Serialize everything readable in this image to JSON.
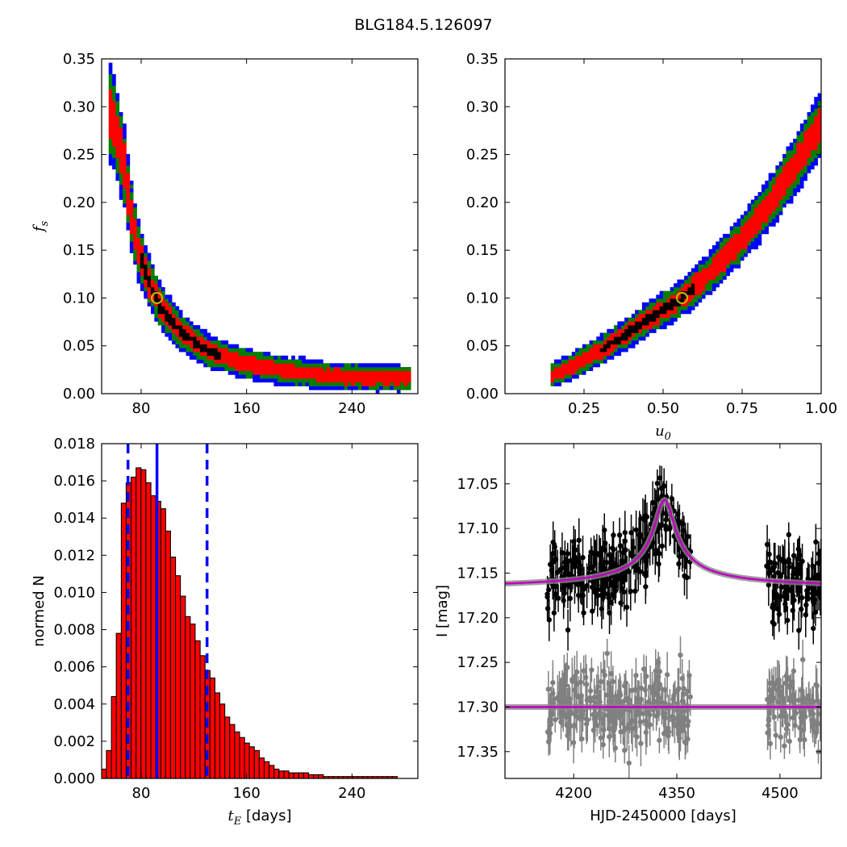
{
  "title": "BLG184.5.126097",
  "chart_data": [
    {
      "id": "fs_vs_tE",
      "type": "heatmap",
      "xlabel": "",
      "ylabel": "f_s",
      "xlim": [
        50,
        290
      ],
      "ylim": [
        0.0,
        0.35
      ],
      "xticks": [
        "80",
        "160",
        "240"
      ],
      "yticks": [
        "0.00",
        "0.05",
        "0.10",
        "0.15",
        "0.20",
        "0.25",
        "0.30",
        "0.35"
      ],
      "levels": [
        {
          "name": "3sigma",
          "color": "#0000ff"
        },
        {
          "name": "2sigma",
          "color": "#007f00"
        },
        {
          "name": "1sigma",
          "color": "#ff0000"
        },
        {
          "name": "best",
          "color": "#000000"
        }
      ],
      "ridge_points": [
        [
          55,
          0.3
        ],
        [
          60,
          0.28
        ],
        [
          67,
          0.24
        ],
        [
          72,
          0.19
        ],
        [
          78,
          0.15
        ],
        [
          85,
          0.12
        ],
        [
          95,
          0.09
        ],
        [
          110,
          0.065
        ],
        [
          130,
          0.045
        ],
        [
          155,
          0.033
        ],
        [
          185,
          0.025
        ],
        [
          220,
          0.019
        ],
        [
          260,
          0.017
        ],
        [
          285,
          0.016
        ]
      ],
      "best_fit": [
        92,
        0.1
      ],
      "grid": false
    },
    {
      "id": "fs_vs_u0",
      "type": "heatmap",
      "xlabel": "u_0",
      "ylabel": "",
      "xlim": [
        0.0,
        1.0
      ],
      "ylim": [
        0.0,
        0.35
      ],
      "xticks": [
        "0.25",
        "0.50",
        "0.75",
        "1.00"
      ],
      "yticks": [
        "0.00",
        "0.05",
        "0.10",
        "0.15",
        "0.20",
        "0.25",
        "0.30",
        "0.35"
      ],
      "ridge_points": [
        [
          0.14,
          0.018
        ],
        [
          0.2,
          0.027
        ],
        [
          0.3,
          0.045
        ],
        [
          0.4,
          0.066
        ],
        [
          0.5,
          0.088
        ],
        [
          0.56,
          0.1
        ],
        [
          0.65,
          0.127
        ],
        [
          0.75,
          0.162
        ],
        [
          0.85,
          0.205
        ],
        [
          0.93,
          0.245
        ],
        [
          1.0,
          0.285
        ]
      ],
      "best_fit": [
        0.56,
        0.1
      ],
      "grid": false
    },
    {
      "id": "tE_histogram",
      "type": "bar",
      "xlabel": "t_E [days]",
      "ylabel": "normed N",
      "xlim": [
        50,
        290
      ],
      "ylim": [
        0.0,
        0.018
      ],
      "xticks": [
        "80",
        "160",
        "240"
      ],
      "yticks": [
        "0.000",
        "0.002",
        "0.004",
        "0.006",
        "0.008",
        "0.010",
        "0.012",
        "0.014",
        "0.016",
        "0.018"
      ],
      "bin_width": 3.74,
      "x": [
        51.8,
        55.5,
        59.3,
        63.0,
        66.8,
        70.5,
        74.2,
        78.0,
        81.7,
        85.5,
        89.2,
        93.0,
        96.7,
        100.4,
        104.2,
        107.9,
        111.7,
        115.4,
        119.1,
        122.9,
        126.6,
        130.4,
        134.1,
        137.8,
        141.6,
        145.3,
        149.1,
        152.8,
        156.6,
        160.3,
        164.0,
        167.8,
        171.5,
        175.3,
        179.0,
        182.7,
        186.5,
        190.2,
        194.0,
        197.7,
        201.4,
        205.2,
        208.9,
        212.7,
        216.4,
        220.2,
        223.9,
        227.6,
        231.4,
        235.1,
        238.9,
        242.6,
        246.3,
        250.1,
        253.8,
        257.6,
        261.3,
        265.0,
        268.8,
        272.5
      ],
      "values": [
        0.0005,
        0.0015,
        0.0044,
        0.0078,
        0.0148,
        0.0159,
        0.0162,
        0.0167,
        0.0166,
        0.0159,
        0.0152,
        0.0149,
        0.0145,
        0.0133,
        0.0119,
        0.0109,
        0.0098,
        0.0087,
        0.0083,
        0.0074,
        0.0066,
        0.0058,
        0.0054,
        0.0046,
        0.004,
        0.0033,
        0.0029,
        0.0025,
        0.0022,
        0.0019,
        0.0017,
        0.0015,
        0.0011,
        0.0009,
        0.0007,
        0.0005,
        0.0004,
        0.0004,
        0.0003,
        0.0003,
        0.0003,
        0.0003,
        0.0002,
        0.0002,
        0.0002,
        0.0001,
        0.0001,
        0.0001,
        0.0001,
        0.0001,
        0.0001,
        0.0001,
        0.0001,
        0.0001,
        0.0001,
        0.0001,
        0.0001,
        0.0001,
        0.0001,
        0.0001
      ],
      "bar_color": "#ff0000",
      "vlines": [
        {
          "x": 92,
          "style": "solid",
          "color": "#0000ff"
        },
        {
          "x": 70,
          "style": "dashed",
          "color": "#0000ff"
        },
        {
          "x": 130,
          "style": "dashed",
          "color": "#0000ff"
        }
      ],
      "grid": false
    },
    {
      "id": "light_curve",
      "type": "scatter",
      "xlabel": "HJD-2450000 [days]",
      "ylabel": "I [mag]",
      "xlim": [
        4100,
        4560
      ],
      "ylim": [
        17.38,
        17.005
      ],
      "inverted_y": true,
      "xticks": [
        "4200",
        "4350",
        "4500"
      ],
      "yticks": [
        "17.05",
        "17.10",
        "17.15",
        "17.20",
        "17.25",
        "17.30",
        "17.35"
      ],
      "series": [
        {
          "color": "#000000",
          "model": {
            "t0": 4332,
            "base": 17.168,
            "peak": 17.068,
            "tau": 44
          }
        },
        {
          "color": "#808080",
          "model": {
            "t0": 4332,
            "base": 17.3,
            "peak": 17.3,
            "tau": 44
          }
        }
      ],
      "model_color": "#bf00bf",
      "observing_seasons": [
        [
          4160,
          4370
        ],
        [
          4480,
          4560
        ]
      ],
      "grid": false
    }
  ]
}
